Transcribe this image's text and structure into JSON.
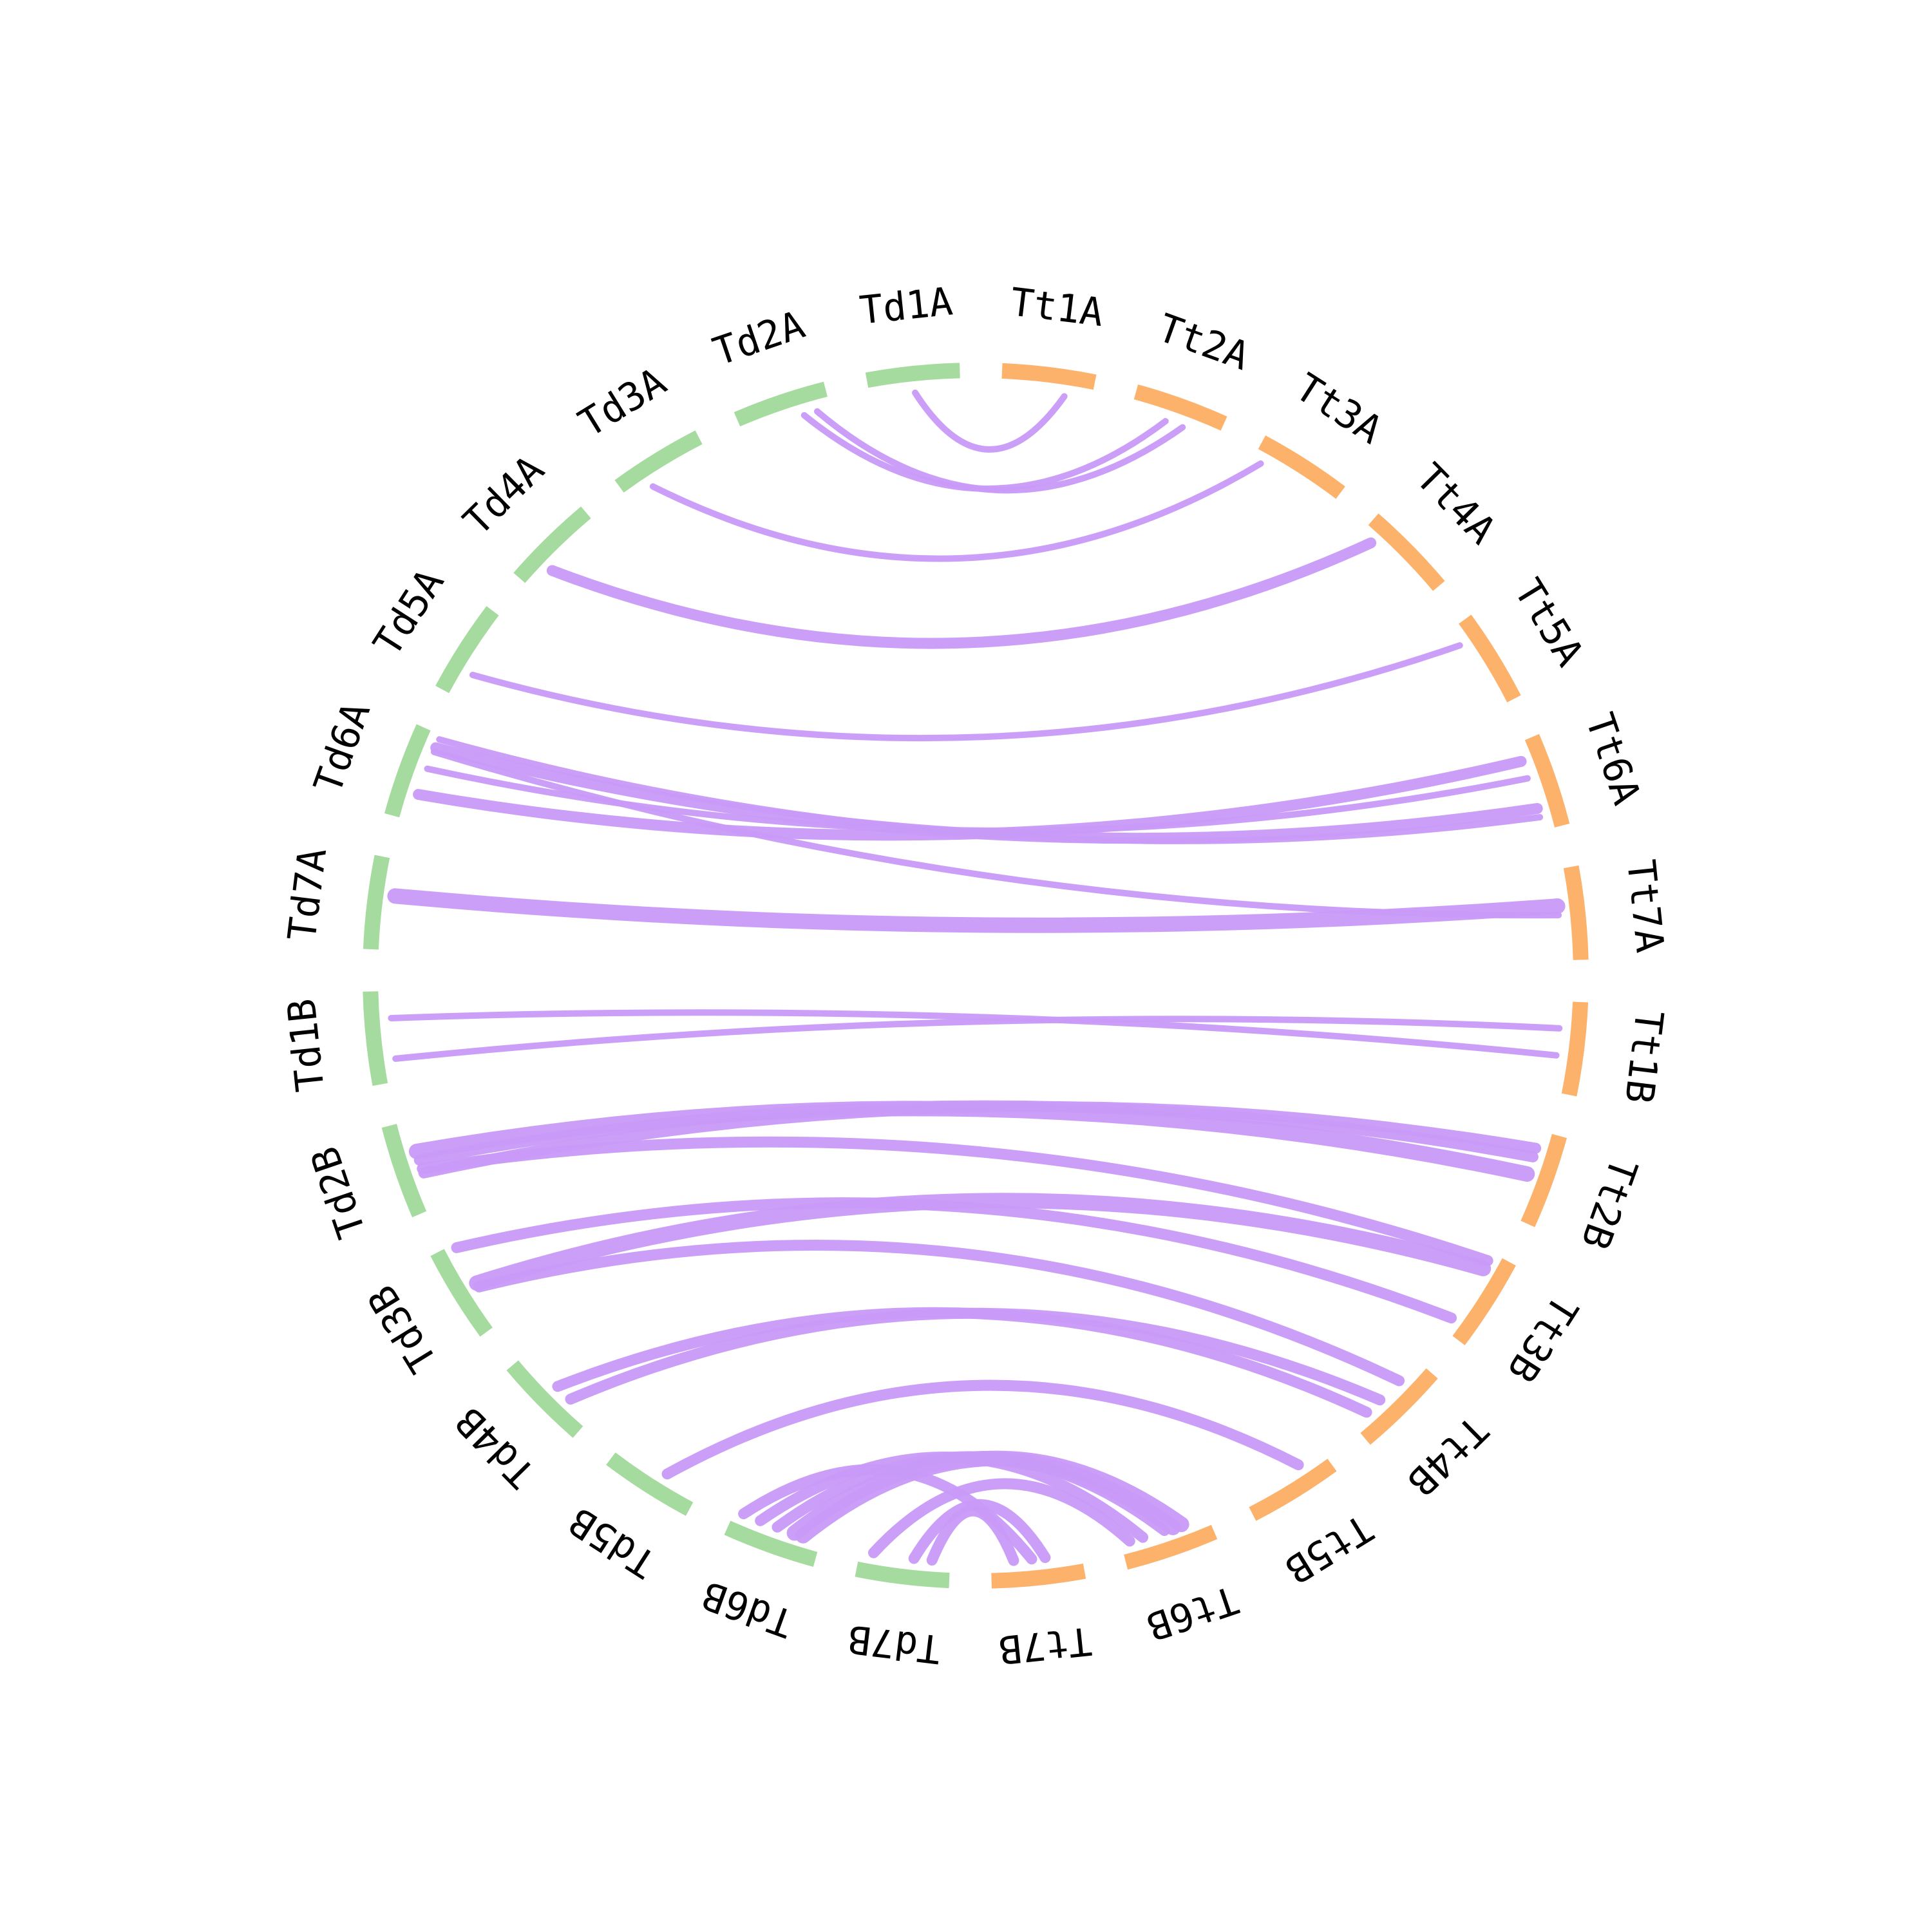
{
  "colors": {
    "Td": "#a6dba0",
    "Tt": "#fdb26c",
    "link": "#c89af8",
    "label": "#000000"
  },
  "segments": [
    {
      "name": "Tt1A",
      "group": "Tt"
    },
    {
      "name": "Tt2A",
      "group": "Tt"
    },
    {
      "name": "Tt3A",
      "group": "Tt"
    },
    {
      "name": "Tt4A",
      "group": "Tt"
    },
    {
      "name": "Tt5A",
      "group": "Tt"
    },
    {
      "name": "Tt6A",
      "group": "Tt"
    },
    {
      "name": "Tt7A",
      "group": "Tt"
    },
    {
      "name": "Tt1B",
      "group": "Tt"
    },
    {
      "name": "Tt2B",
      "group": "Tt"
    },
    {
      "name": "Tt3B",
      "group": "Tt"
    },
    {
      "name": "Tt4B",
      "group": "Tt"
    },
    {
      "name": "Tt5B",
      "group": "Tt"
    },
    {
      "name": "Tt6B",
      "group": "Tt"
    },
    {
      "name": "Tt7B",
      "group": "Tt"
    },
    {
      "name": "Td7B",
      "group": "Td"
    },
    {
      "name": "Td6B",
      "group": "Td"
    },
    {
      "name": "Td5B",
      "group": "Td"
    },
    {
      "name": "Td4B",
      "group": "Td"
    },
    {
      "name": "Td3B",
      "group": "Td"
    },
    {
      "name": "Td2B",
      "group": "Td"
    },
    {
      "name": "Td1B",
      "group": "Td"
    },
    {
      "name": "Td7A",
      "group": "Td"
    },
    {
      "name": "Td6A",
      "group": "Td"
    },
    {
      "name": "Td5A",
      "group": "Td"
    },
    {
      "name": "Td4A",
      "group": "Td"
    },
    {
      "name": "Td3A",
      "group": "Td"
    },
    {
      "name": "Td2A",
      "group": "Td"
    },
    {
      "name": "Td1A",
      "group": "Td"
    }
  ],
  "links": [
    {
      "from": "Td1A",
      "to": "Tt1A",
      "fs": 0.5,
      "ts": 0.7,
      "w": 1
    },
    {
      "from": "Td2A",
      "to": "Tt2A",
      "fs": 0.7,
      "ts": 0.4,
      "w": 1
    },
    {
      "from": "Td2A",
      "to": "Tt2A",
      "fs": 0.85,
      "ts": 0.6,
      "w": 1
    },
    {
      "from": "Td3A",
      "to": "Tt3A",
      "fs": 0.3,
      "ts": 0.1,
      "w": 1
    },
    {
      "from": "Td4A",
      "to": "Tt4A",
      "fs": 0.3,
      "ts": 0.15,
      "w": 2
    },
    {
      "from": "Td5A",
      "to": "Tt5A",
      "fs": 0.3,
      "ts": 0.2,
      "w": 1
    },
    {
      "from": "Td6A",
      "to": "Tt6A",
      "fs": 0.3,
      "ts": 0.2,
      "w": 2
    },
    {
      "from": "Td6A",
      "to": "Tt6A",
      "fs": 0.6,
      "ts": 0.4,
      "w": 1
    },
    {
      "from": "Td6A",
      "to": "Tt6A",
      "fs": 0.85,
      "ts": 0.75,
      "w": 2
    },
    {
      "from": "Td6A",
      "to": "Tt6A",
      "fs": 0.95,
      "ts": 0.85,
      "w": 1
    },
    {
      "from": "Td6A",
      "to": "Tt7A",
      "fs": 0.8,
      "ts": 0.5,
      "w": 1
    },
    {
      "from": "Td7A",
      "to": "Tt7A",
      "fs": 0.6,
      "ts": 0.4,
      "w": 3
    },
    {
      "from": "Td1B",
      "to": "Tt1B",
      "fs": 0.25,
      "ts": 0.3,
      "w": 1
    },
    {
      "from": "Td1B",
      "to": "Tt1B",
      "fs": 0.7,
      "ts": 0.6,
      "w": 1
    },
    {
      "from": "Td2B",
      "to": "Tt2B",
      "fs": 0.4,
      "ts": 0.2,
      "w": 2
    },
    {
      "from": "Td2B",
      "to": "Tt2B",
      "fs": 0.55,
      "ts": 0.3,
      "w": 2
    },
    {
      "from": "Td2B",
      "to": "Tt2B",
      "fs": 0.65,
      "ts": 0.5,
      "w": 3
    },
    {
      "from": "Td2B",
      "to": "Tt3B",
      "fs": 0.45,
      "ts": 0.1,
      "w": 2
    },
    {
      "from": "Td3B",
      "to": "Tt3B",
      "fs": 0.5,
      "ts": 0.2,
      "w": 3
    },
    {
      "from": "Td3B",
      "to": "Tt4B",
      "fs": 0.45,
      "ts": 0.3,
      "w": 2
    },
    {
      "from": "Td3B",
      "to": "Tt3B",
      "fs": 0.95,
      "ts": 0.85,
      "w": 2
    },
    {
      "from": "Td4B",
      "to": "Tt4B",
      "fs": 0.3,
      "ts": 0.6,
      "w": 2
    },
    {
      "from": "Td4B",
      "to": "Tt4B",
      "fs": 0.5,
      "ts": 0.8,
      "w": 2
    },
    {
      "from": "Td5B",
      "to": "Tt5B",
      "fs": 0.4,
      "ts": 0.3,
      "w": 2
    },
    {
      "from": "Td6B",
      "to": "Tt6B",
      "fs": 0.2,
      "ts": 0.3,
      "w": 3
    },
    {
      "from": "Td6B",
      "to": "Tt6B",
      "fs": 0.3,
      "ts": 0.4,
      "w": 3
    },
    {
      "from": "Td6B",
      "to": "Tt6B",
      "fs": 0.5,
      "ts": 0.5,
      "w": 2
    },
    {
      "from": "Td6B",
      "to": "Tt6B",
      "fs": 0.7,
      "ts": 0.75,
      "w": 2
    },
    {
      "from": "Td7B",
      "to": "Tt7B",
      "fs": 0.4,
      "ts": 0.4,
      "w": 2
    },
    {
      "from": "Td7B",
      "to": "Tt7B",
      "fs": 0.2,
      "ts": 0.75,
      "w": 2
    },
    {
      "from": "Td6B",
      "to": "Tt7B",
      "fs": 0.9,
      "ts": 0.55,
      "w": 2
    },
    {
      "from": "Td7B",
      "to": "Tt6B",
      "fs": 0.85,
      "ts": 0.9,
      "w": 2
    }
  ]
}
